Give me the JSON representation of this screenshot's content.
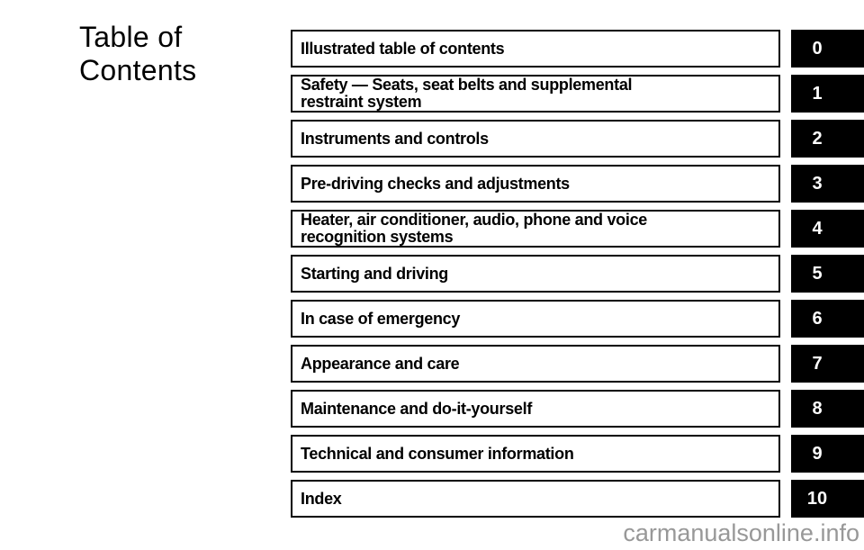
{
  "title": {
    "text": "Table of Contents",
    "lines": [
      "Table of",
      "Contents"
    ]
  },
  "toc": {
    "rows": [
      {
        "label": "Illustrated table of contents",
        "lines": [
          "Illustrated table of contents"
        ],
        "tab": "0"
      },
      {
        "label": "Safety — Seats, seat belts and supplemental restraint system",
        "lines": [
          "Safety — Seats, seat belts and supplemental",
          "restraint system"
        ],
        "tab": "1"
      },
      {
        "label": "Instruments and controls",
        "lines": [
          "Instruments and controls"
        ],
        "tab": "2"
      },
      {
        "label": "Pre-driving checks and adjustments",
        "lines": [
          "Pre-driving checks and adjustments"
        ],
        "tab": "3"
      },
      {
        "label": "Heater, air conditioner, audio, phone and voice recognition systems",
        "lines": [
          "Heater, air conditioner, audio, phone and voice",
          "recognition systems"
        ],
        "tab": "4"
      },
      {
        "label": "Starting and driving",
        "lines": [
          "Starting and driving"
        ],
        "tab": "5"
      },
      {
        "label": "In case of emergency",
        "lines": [
          "In case of emergency"
        ],
        "tab": "6"
      },
      {
        "label": "Appearance and care",
        "lines": [
          "Appearance and care"
        ],
        "tab": "7"
      },
      {
        "label": "Maintenance and do-it-yourself",
        "lines": [
          "Maintenance and do-it-yourself"
        ],
        "tab": "8"
      },
      {
        "label": "Technical and consumer information",
        "lines": [
          "Technical and consumer information"
        ],
        "tab": "9"
      },
      {
        "label": "Index",
        "lines": [
          "Index"
        ],
        "tab": "10"
      }
    ]
  },
  "watermark": {
    "text": "carmanualsonline.info"
  },
  "colors": {
    "background": "#ffffff",
    "text": "#000000",
    "box_border": "#000000",
    "tab_background": "#000000",
    "tab_text": "#ffffff",
    "watermark_text": "#989898"
  }
}
